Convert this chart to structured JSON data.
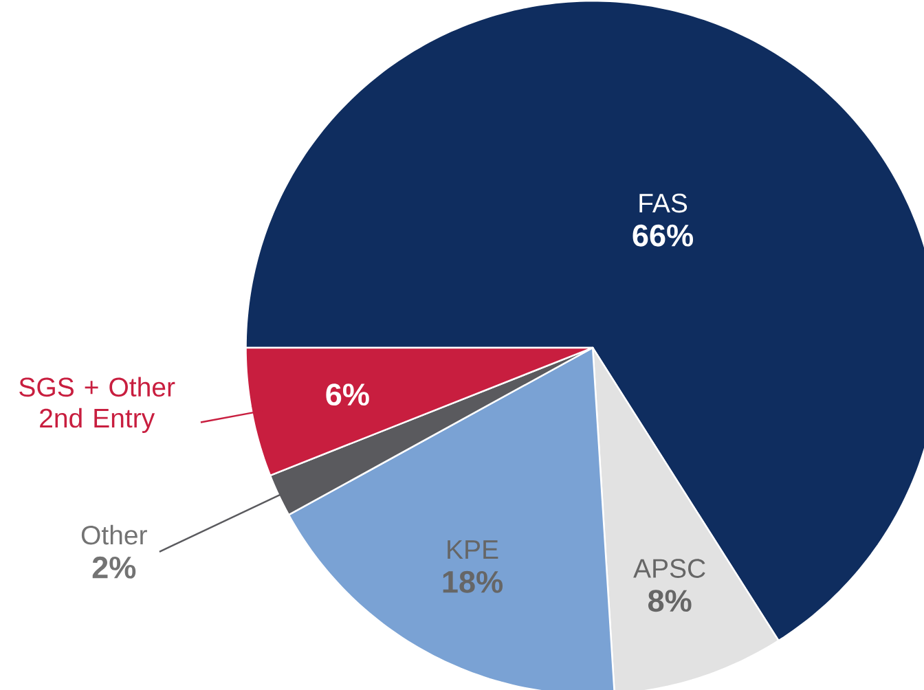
{
  "chart_data": {
    "type": "pie",
    "categories": [
      "FAS",
      "APSC",
      "KPE",
      "Other",
      "SGS + Other 2nd Entry"
    ],
    "values": [
      66,
      8,
      18,
      2,
      6
    ],
    "colors": [
      "#0f2d5f",
      "#e2e2e2",
      "#7aa2d4",
      "#5a5a5e",
      "#c81e3f"
    ],
    "value_labels": [
      "66%",
      "8%",
      "18%",
      "2%",
      "6%"
    ]
  }
}
